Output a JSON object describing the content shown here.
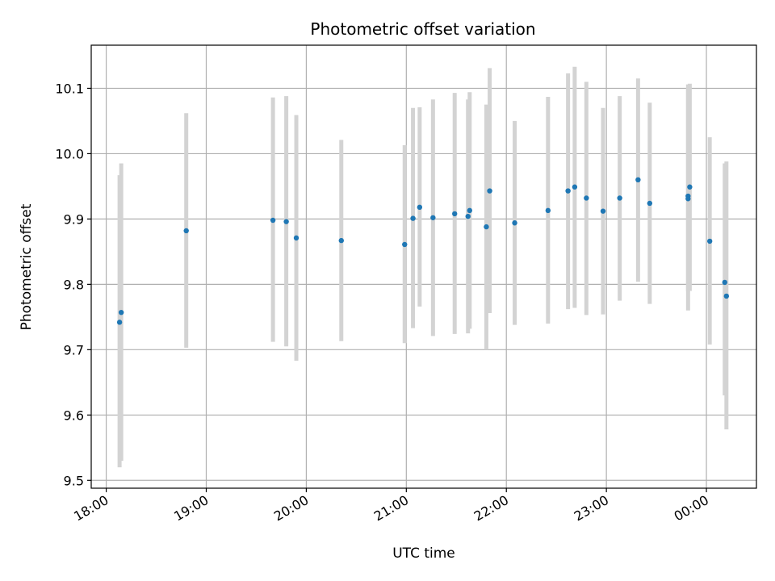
{
  "chart_data": {
    "type": "scatter",
    "title": "Photometric offset variation",
    "xlabel": "UTC time",
    "ylabel": "Photometric offset",
    "x_tick_labels": [
      "18:00",
      "19:00",
      "20:00",
      "21:00",
      "22:00",
      "23:00",
      "00:00"
    ],
    "y_tick_labels": [
      "9.5",
      "9.6",
      "9.7",
      "9.8",
      "9.9",
      "10.0",
      "10.1"
    ],
    "xlim": [
      "17:51",
      "00:30"
    ],
    "ylim": [
      9.488,
      10.166
    ],
    "grid": true,
    "legend": "none",
    "errorbars": true,
    "colors": {
      "point": "#1f77b4",
      "errorbar": "#d3d3d3",
      "grid": "#b0b0b0"
    },
    "points": [
      {
        "time": "18:08",
        "y": 9.742,
        "ylow": 9.52,
        "yhigh": 9.967
      },
      {
        "time": "18:09",
        "y": 9.757,
        "ylow": 9.53,
        "yhigh": 9.985
      },
      {
        "time": "18:48",
        "y": 9.882,
        "ylow": 9.703,
        "yhigh": 10.062
      },
      {
        "time": "19:40",
        "y": 9.898,
        "ylow": 9.712,
        "yhigh": 10.086
      },
      {
        "time": "19:48",
        "y": 9.896,
        "ylow": 9.705,
        "yhigh": 10.088
      },
      {
        "time": "19:54",
        "y": 9.871,
        "ylow": 9.683,
        "yhigh": 10.059
      },
      {
        "time": "20:21",
        "y": 9.867,
        "ylow": 9.713,
        "yhigh": 10.021
      },
      {
        "time": "20:59",
        "y": 9.861,
        "ylow": 9.71,
        "yhigh": 10.013
      },
      {
        "time": "21:04",
        "y": 9.901,
        "ylow": 9.733,
        "yhigh": 10.07
      },
      {
        "time": "21:08",
        "y": 9.918,
        "ylow": 9.766,
        "yhigh": 10.071
      },
      {
        "time": "21:16",
        "y": 9.902,
        "ylow": 9.721,
        "yhigh": 10.083
      },
      {
        "time": "21:29",
        "y": 9.908,
        "ylow": 9.724,
        "yhigh": 10.093
      },
      {
        "time": "21:37",
        "y": 9.904,
        "ylow": 9.725,
        "yhigh": 10.083
      },
      {
        "time": "21:38",
        "y": 9.913,
        "ylow": 9.732,
        "yhigh": 10.094
      },
      {
        "time": "21:48",
        "y": 9.888,
        "ylow": 9.7,
        "yhigh": 10.075
      },
      {
        "time": "21:50",
        "y": 9.943,
        "ylow": 9.756,
        "yhigh": 10.131
      },
      {
        "time": "22:05",
        "y": 9.894,
        "ylow": 9.738,
        "yhigh": 10.05
      },
      {
        "time": "22:25",
        "y": 9.913,
        "ylow": 9.74,
        "yhigh": 10.087
      },
      {
        "time": "22:37",
        "y": 9.943,
        "ylow": 9.762,
        "yhigh": 10.123
      },
      {
        "time": "22:41",
        "y": 9.949,
        "ylow": 9.764,
        "yhigh": 10.133
      },
      {
        "time": "22:48",
        "y": 9.932,
        "ylow": 9.753,
        "yhigh": 10.11
      },
      {
        "time": "22:58",
        "y": 9.912,
        "ylow": 9.754,
        "yhigh": 10.07
      },
      {
        "time": "23:08",
        "y": 9.932,
        "ylow": 9.775,
        "yhigh": 10.088
      },
      {
        "time": "23:19",
        "y": 9.96,
        "ylow": 9.804,
        "yhigh": 10.115
      },
      {
        "time": "23:26",
        "y": 9.924,
        "ylow": 9.77,
        "yhigh": 10.078
      },
      {
        "time": "23:49",
        "y": 9.935,
        "ylow": 9.76,
        "yhigh": 10.106
      },
      {
        "time": "23:49",
        "y": 9.931,
        "ylow": 9.79,
        "yhigh": 10.1
      },
      {
        "time": "23:50",
        "y": 9.949,
        "ylow": 9.79,
        "yhigh": 10.107
      },
      {
        "time": "00:02",
        "y": 9.866,
        "ylow": 9.708,
        "yhigh": 10.025
      },
      {
        "time": "00:11",
        "y": 9.803,
        "ylow": 9.63,
        "yhigh": 9.985
      },
      {
        "time": "00:12",
        "y": 9.782,
        "ylow": 9.578,
        "yhigh": 9.988
      }
    ]
  }
}
